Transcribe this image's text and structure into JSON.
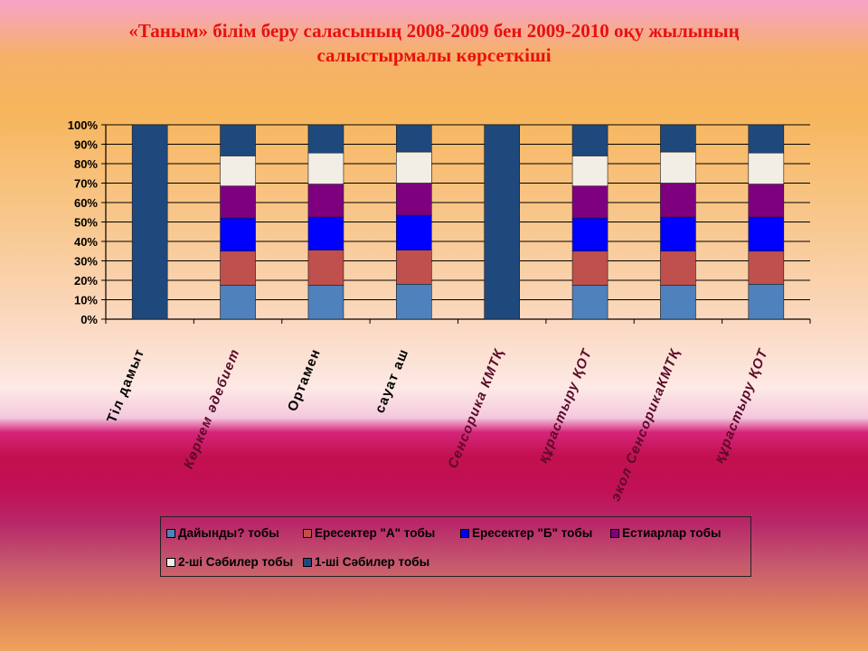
{
  "title_line1": "«Таным» білім беру саласының 2008-2009 бен 2009-2010 оқу жылының",
  "title_line2": "салыстырмалы  көрсеткіші",
  "chart_data": {
    "type": "bar",
    "stacked": true,
    "percent_stacked": true,
    "ylim": [
      0,
      100
    ],
    "y_ticks": [
      "0%",
      "10%",
      "20%",
      "30%",
      "40%",
      "50%",
      "60%",
      "70%",
      "80%",
      "90%",
      "100%"
    ],
    "grid": true,
    "legend_position": "bottom",
    "categories": [
      "Тіл дамыт",
      "Көркем әдебиет",
      "Ортамен",
      "сауат аш",
      "Сенсорика КМТҚ",
      "құрастыру ҚОТ",
      "экол СенсорикаКМТҚ",
      "құрастыру ҚОТ"
    ],
    "series": [
      {
        "name": "Дайынды? тобы",
        "color": "#4f81bd",
        "values": [
          0,
          17.5,
          17.5,
          18,
          0,
          17.5,
          17.5,
          18
        ]
      },
      {
        "name": "Ересектер \"А\" тобы",
        "color": "#c0504d",
        "values": [
          0,
          17.5,
          18,
          17.5,
          0,
          17.5,
          17.5,
          17
        ]
      },
      {
        "name": "Ересектер \"Б\" тобы",
        "color": "#0000ff",
        "values": [
          0,
          17,
          17,
          18,
          0,
          17,
          17.5,
          17.5
        ]
      },
      {
        "name": "Естиарлар тобы",
        "color": "#7f007f",
        "values": [
          0,
          16.5,
          17,
          16.5,
          0,
          16.5,
          17.5,
          17
        ]
      },
      {
        "name": "2-ші Сәбилер тобы",
        "color": "#f2eee6",
        "values": [
          0,
          15.5,
          16,
          16,
          0,
          15.5,
          16,
          16
        ]
      },
      {
        "name": "1-ші Сәбилер тобы",
        "color": "#1f497d",
        "values": [
          100,
          16,
          14.5,
          14,
          100,
          16,
          14,
          14.5
        ]
      }
    ]
  }
}
